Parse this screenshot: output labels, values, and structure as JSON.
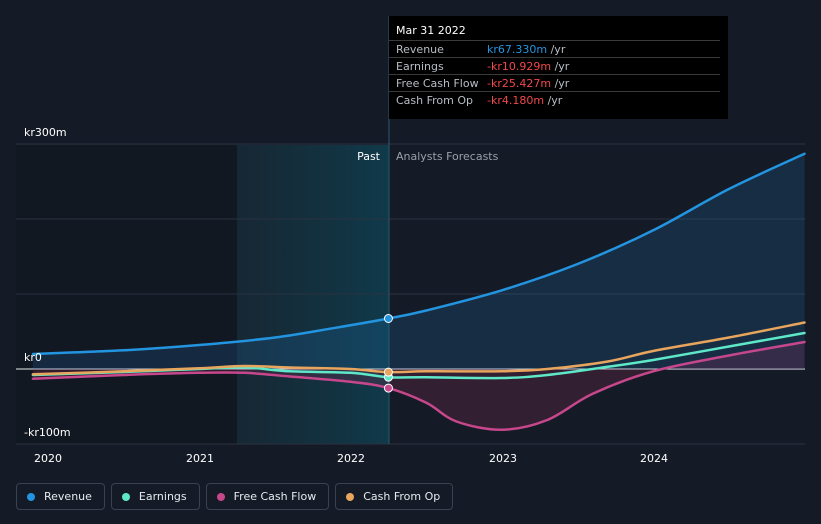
{
  "chart_data": {
    "type": "line",
    "y_axis": {
      "min": -100,
      "max": 300,
      "tick_labels": [
        "kr300m",
        "kr0",
        "-kr100m"
      ]
    },
    "x_axis": {
      "tick_labels": [
        "2020",
        "2021",
        "2022",
        "2023",
        "2024"
      ]
    },
    "sections": {
      "past": "Past",
      "forecast": "Analysts Forecasts"
    },
    "series": [
      {
        "name": "Revenue",
        "color": "#2394df",
        "points": [
          [
            2019.9,
            20
          ],
          [
            2020.5,
            25
          ],
          [
            2021.0,
            32
          ],
          [
            2021.5,
            42
          ],
          [
            2021.9,
            55
          ],
          [
            2022.25,
            67.33
          ],
          [
            2022.5,
            78
          ],
          [
            2023.0,
            105
          ],
          [
            2023.5,
            140
          ],
          [
            2024.0,
            185
          ],
          [
            2024.5,
            240
          ],
          [
            2025.0,
            287
          ]
        ]
      },
      {
        "name": "Earnings",
        "color": "#5ee8c8",
        "points": [
          [
            2019.9,
            -8
          ],
          [
            2020.5,
            -4
          ],
          [
            2021.0,
            0
          ],
          [
            2021.3,
            2
          ],
          [
            2021.6,
            -3
          ],
          [
            2022.0,
            -5
          ],
          [
            2022.25,
            -10.93
          ],
          [
            2022.5,
            -11
          ],
          [
            2023.0,
            -12
          ],
          [
            2023.3,
            -8
          ],
          [
            2023.7,
            3
          ],
          [
            2024.0,
            12
          ],
          [
            2024.5,
            30
          ],
          [
            2025.0,
            48
          ]
        ]
      },
      {
        "name": "Free Cash Flow",
        "color": "#c6478b",
        "points": [
          [
            2019.9,
            -13
          ],
          [
            2020.5,
            -8
          ],
          [
            2021.0,
            -5
          ],
          [
            2021.3,
            -5
          ],
          [
            2021.6,
            -10
          ],
          [
            2022.0,
            -17
          ],
          [
            2022.25,
            -25.43
          ],
          [
            2022.5,
            -45
          ],
          [
            2022.7,
            -70
          ],
          [
            2023.0,
            -81
          ],
          [
            2023.3,
            -68
          ],
          [
            2023.6,
            -33
          ],
          [
            2024.0,
            -3
          ],
          [
            2024.5,
            18
          ],
          [
            2025.0,
            36
          ]
        ]
      },
      {
        "name": "Cash From Op",
        "color": "#e8a55d",
        "points": [
          [
            2019.9,
            -7
          ],
          [
            2020.5,
            -3
          ],
          [
            2021.0,
            1
          ],
          [
            2021.3,
            4
          ],
          [
            2021.6,
            2
          ],
          [
            2022.0,
            0
          ],
          [
            2022.25,
            -4.18
          ],
          [
            2022.5,
            -3
          ],
          [
            2023.0,
            -3
          ],
          [
            2023.3,
            0
          ],
          [
            2023.7,
            10
          ],
          [
            2024.0,
            24
          ],
          [
            2024.5,
            42
          ],
          [
            2025.0,
            62
          ]
        ]
      }
    ]
  },
  "tooltip": {
    "date": "Mar 31 2022",
    "unit": " /yr",
    "rows": [
      {
        "label": "Revenue",
        "value": "kr67.330m",
        "color": "#2394df"
      },
      {
        "label": "Earnings",
        "value": "-kr10.929m",
        "color": "#f0484b"
      },
      {
        "label": "Free Cash Flow",
        "value": "-kr25.427m",
        "color": "#f0484b"
      },
      {
        "label": "Cash From Op",
        "value": "-kr4.180m",
        "color": "#f0484b"
      }
    ]
  },
  "legend": [
    {
      "label": "Revenue",
      "color": "#2394df"
    },
    {
      "label": "Earnings",
      "color": "#5ee8c8"
    },
    {
      "label": "Free Cash Flow",
      "color": "#c6478b"
    },
    {
      "label": "Cash From Op",
      "color": "#e8a55d"
    }
  ]
}
